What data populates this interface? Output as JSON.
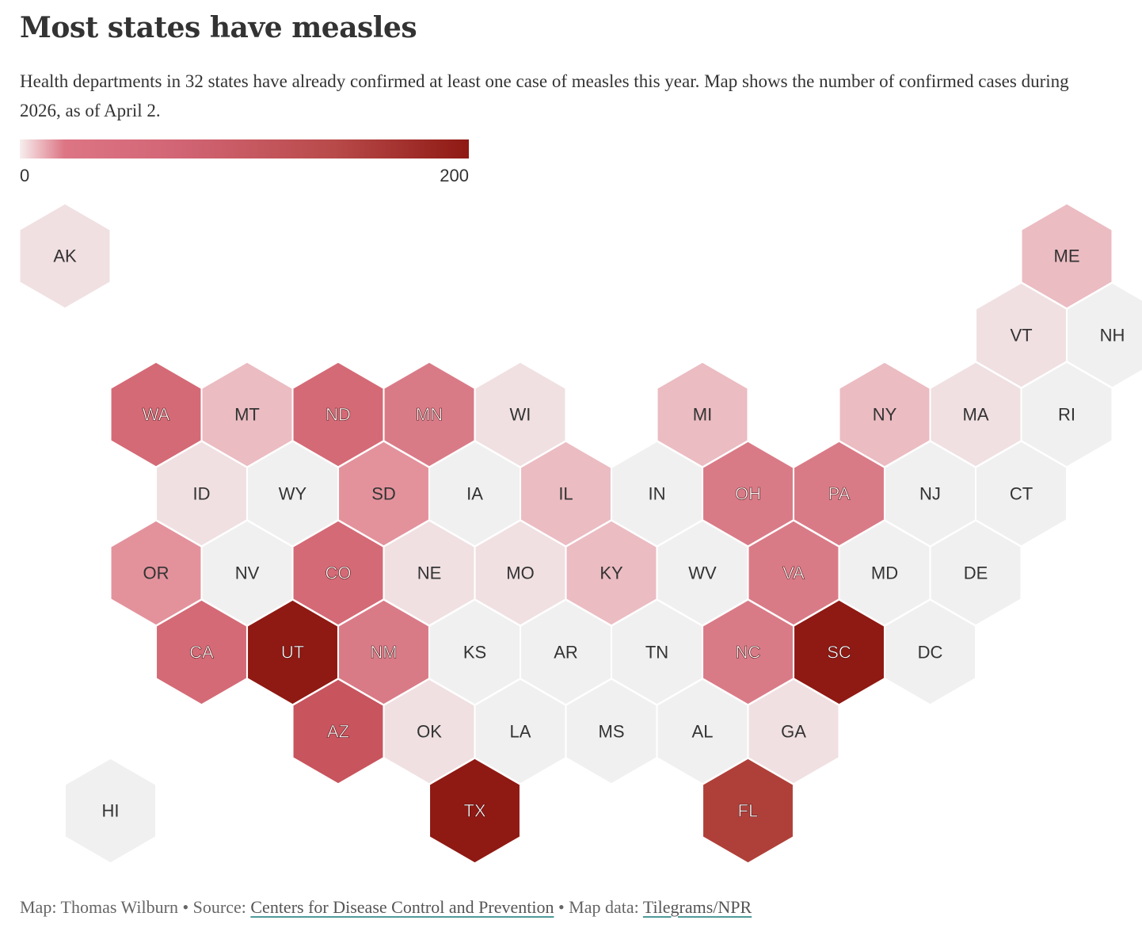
{
  "title": "Most states have measles",
  "subtitle": "Health departments in 32 states have already confirmed at least one case of measles this year. Map shows the number of confirmed cases during 2026, as of April 2.",
  "legend": {
    "min_label": "0",
    "max_label": "200",
    "min": 0,
    "max": 200
  },
  "colors": {
    "empty": "#f0f0f0",
    "very_light": "#f0e0e2",
    "light": "#ebbcc2",
    "medium_light": "#e3929c",
    "medium": "#d97b87",
    "medium_dark": "#d46a76",
    "strong": "#c8545e",
    "very_strong": "#af4039",
    "darkest": "#8f1913"
  },
  "map_data": {
    "type": "hex-tile-choropleth",
    "states": [
      {
        "abbr": "AK",
        "col": 0,
        "row": 0,
        "shade": "very_light"
      },
      {
        "abbr": "ME",
        "col": 11,
        "row": 0,
        "shade": "light"
      },
      {
        "abbr": "VT",
        "col": 10,
        "row": 1,
        "shade": "very_light"
      },
      {
        "abbr": "NH",
        "col": 11,
        "row": 1,
        "shade": "empty"
      },
      {
        "abbr": "WA",
        "col": 1,
        "row": 2,
        "shade": "medium_dark"
      },
      {
        "abbr": "MT",
        "col": 2,
        "row": 2,
        "shade": "light"
      },
      {
        "abbr": "ND",
        "col": 3,
        "row": 2,
        "shade": "medium_dark"
      },
      {
        "abbr": "MN",
        "col": 4,
        "row": 2,
        "shade": "medium"
      },
      {
        "abbr": "WI",
        "col": 5,
        "row": 2,
        "shade": "very_light"
      },
      {
        "abbr": "MI",
        "col": 7,
        "row": 2,
        "shade": "light"
      },
      {
        "abbr": "NY",
        "col": 9,
        "row": 2,
        "shade": "light"
      },
      {
        "abbr": "MA",
        "col": 10,
        "row": 2,
        "shade": "very_light"
      },
      {
        "abbr": "RI",
        "col": 11,
        "row": 2,
        "shade": "empty"
      },
      {
        "abbr": "ID",
        "col": 1,
        "row": 3,
        "shade": "very_light"
      },
      {
        "abbr": "WY",
        "col": 2,
        "row": 3,
        "shade": "empty"
      },
      {
        "abbr": "SD",
        "col": 3,
        "row": 3,
        "shade": "medium_light"
      },
      {
        "abbr": "IA",
        "col": 4,
        "row": 3,
        "shade": "empty"
      },
      {
        "abbr": "IL",
        "col": 5,
        "row": 3,
        "shade": "light"
      },
      {
        "abbr": "IN",
        "col": 6,
        "row": 3,
        "shade": "empty"
      },
      {
        "abbr": "OH",
        "col": 7,
        "row": 3,
        "shade": "medium"
      },
      {
        "abbr": "PA",
        "col": 8,
        "row": 3,
        "shade": "medium"
      },
      {
        "abbr": "NJ",
        "col": 9,
        "row": 3,
        "shade": "empty"
      },
      {
        "abbr": "CT",
        "col": 10,
        "row": 3,
        "shade": "empty"
      },
      {
        "abbr": "OR",
        "col": 1,
        "row": 4,
        "shade": "medium_light"
      },
      {
        "abbr": "NV",
        "col": 2,
        "row": 4,
        "shade": "empty"
      },
      {
        "abbr": "CO",
        "col": 3,
        "row": 4,
        "shade": "medium_dark"
      },
      {
        "abbr": "NE",
        "col": 4,
        "row": 4,
        "shade": "very_light"
      },
      {
        "abbr": "MO",
        "col": 5,
        "row": 4,
        "shade": "very_light"
      },
      {
        "abbr": "KY",
        "col": 6,
        "row": 4,
        "shade": "light"
      },
      {
        "abbr": "WV",
        "col": 7,
        "row": 4,
        "shade": "empty"
      },
      {
        "abbr": "VA",
        "col": 8,
        "row": 4,
        "shade": "medium"
      },
      {
        "abbr": "MD",
        "col": 9,
        "row": 4,
        "shade": "empty"
      },
      {
        "abbr": "DE",
        "col": 10,
        "row": 4,
        "shade": "empty"
      },
      {
        "abbr": "CA",
        "col": 1,
        "row": 5,
        "shade": "medium_dark"
      },
      {
        "abbr": "UT",
        "col": 2,
        "row": 5,
        "shade": "darkest"
      },
      {
        "abbr": "NM",
        "col": 3,
        "row": 5,
        "shade": "medium"
      },
      {
        "abbr": "KS",
        "col": 4,
        "row": 5,
        "shade": "empty"
      },
      {
        "abbr": "AR",
        "col": 5,
        "row": 5,
        "shade": "empty"
      },
      {
        "abbr": "TN",
        "col": 6,
        "row": 5,
        "shade": "empty"
      },
      {
        "abbr": "NC",
        "col": 7,
        "row": 5,
        "shade": "medium"
      },
      {
        "abbr": "SC",
        "col": 8,
        "row": 5,
        "shade": "darkest"
      },
      {
        "abbr": "DC",
        "col": 9,
        "row": 5,
        "shade": "empty"
      },
      {
        "abbr": "AZ",
        "col": 3,
        "row": 6,
        "shade": "strong"
      },
      {
        "abbr": "OK",
        "col": 4,
        "row": 6,
        "shade": "very_light"
      },
      {
        "abbr": "LA",
        "col": 5,
        "row": 6,
        "shade": "empty"
      },
      {
        "abbr": "MS",
        "col": 6,
        "row": 6,
        "shade": "empty"
      },
      {
        "abbr": "AL",
        "col": 7,
        "row": 6,
        "shade": "empty"
      },
      {
        "abbr": "GA",
        "col": 8,
        "row": 6,
        "shade": "very_light"
      },
      {
        "abbr": "HI",
        "col": 0,
        "row": 7,
        "shade": "empty"
      },
      {
        "abbr": "TX",
        "col": 4,
        "row": 7,
        "shade": "darkest"
      },
      {
        "abbr": "FL",
        "col": 7,
        "row": 7,
        "shade": "very_strong"
      }
    ]
  },
  "footer": {
    "map_credit": "Map: Thomas Wilburn",
    "separator": " • ",
    "source_label": "Source: ",
    "source_link": "Centers for Disease Control and Prevention",
    "mapdata_label": "Map data: ",
    "mapdata_link": "Tilegrams/NPR"
  }
}
